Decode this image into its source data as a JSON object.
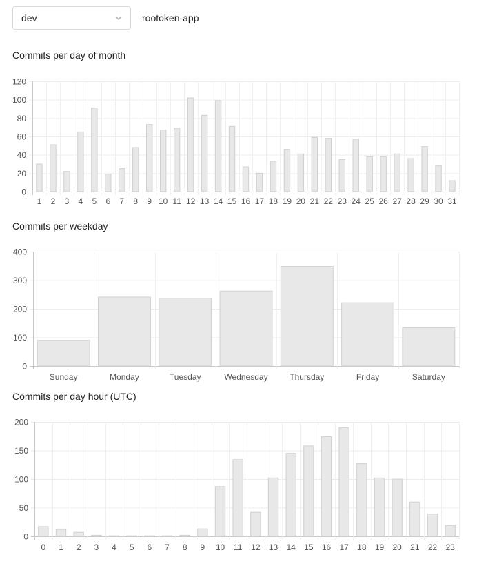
{
  "header": {
    "branch_select": {
      "value": "dev",
      "icon": "chevron-down-icon"
    },
    "repo_name": "rootoken-app"
  },
  "chart_data": [
    {
      "id": "month",
      "type": "bar",
      "title": "Commits per day of month",
      "categories": [
        "1",
        "2",
        "3",
        "4",
        "5",
        "6",
        "7",
        "8",
        "9",
        "10",
        "11",
        "12",
        "13",
        "14",
        "15",
        "16",
        "17",
        "18",
        "19",
        "20",
        "21",
        "22",
        "23",
        "24",
        "25",
        "26",
        "27",
        "28",
        "29",
        "30",
        "31"
      ],
      "values": [
        30,
        51,
        22,
        65,
        91,
        19,
        25,
        48,
        73,
        67,
        69,
        102,
        83,
        99,
        71,
        27,
        20,
        33,
        46,
        41,
        59,
        58,
        35,
        57,
        38,
        38,
        41,
        36,
        49,
        28,
        12
      ],
      "ylim": [
        0,
        120
      ],
      "yticks": [
        0,
        20,
        40,
        60,
        80,
        100,
        120
      ],
      "xlabel": "",
      "ylabel": "",
      "grid": true,
      "bar_color": "#e8e8e8",
      "bar_border": "#d0d0d0"
    },
    {
      "id": "weekday",
      "type": "bar",
      "title": "Commits per weekday",
      "categories": [
        "Sunday",
        "Monday",
        "Tuesday",
        "Wednesday",
        "Thursday",
        "Friday",
        "Saturday"
      ],
      "values": [
        90,
        241,
        237,
        262,
        348,
        221,
        134
      ],
      "ylim": [
        0,
        400
      ],
      "yticks": [
        0,
        100,
        200,
        300,
        400
      ],
      "xlabel": "",
      "ylabel": "",
      "grid": true,
      "bar_color": "#e8e8e8",
      "bar_border": "#d0d0d0"
    },
    {
      "id": "hour",
      "type": "bar",
      "title": "Commits per day hour (UTC)",
      "categories": [
        "0",
        "1",
        "2",
        "3",
        "4",
        "5",
        "6",
        "7",
        "8",
        "9",
        "10",
        "11",
        "12",
        "13",
        "14",
        "15",
        "16",
        "17",
        "18",
        "19",
        "20",
        "21",
        "22",
        "23"
      ],
      "values": [
        17,
        12,
        7,
        2,
        1,
        1,
        1,
        1,
        2,
        13,
        87,
        134,
        42,
        102,
        145,
        158,
        174,
        190,
        127,
        102,
        100,
        60,
        39,
        19
      ],
      "ylim": [
        0,
        200
      ],
      "yticks": [
        0,
        50,
        100,
        150,
        200
      ],
      "xlabel": "",
      "ylabel": "",
      "grid": true,
      "bar_color": "#e8e8e8",
      "bar_border": "#d0d0d0"
    }
  ]
}
